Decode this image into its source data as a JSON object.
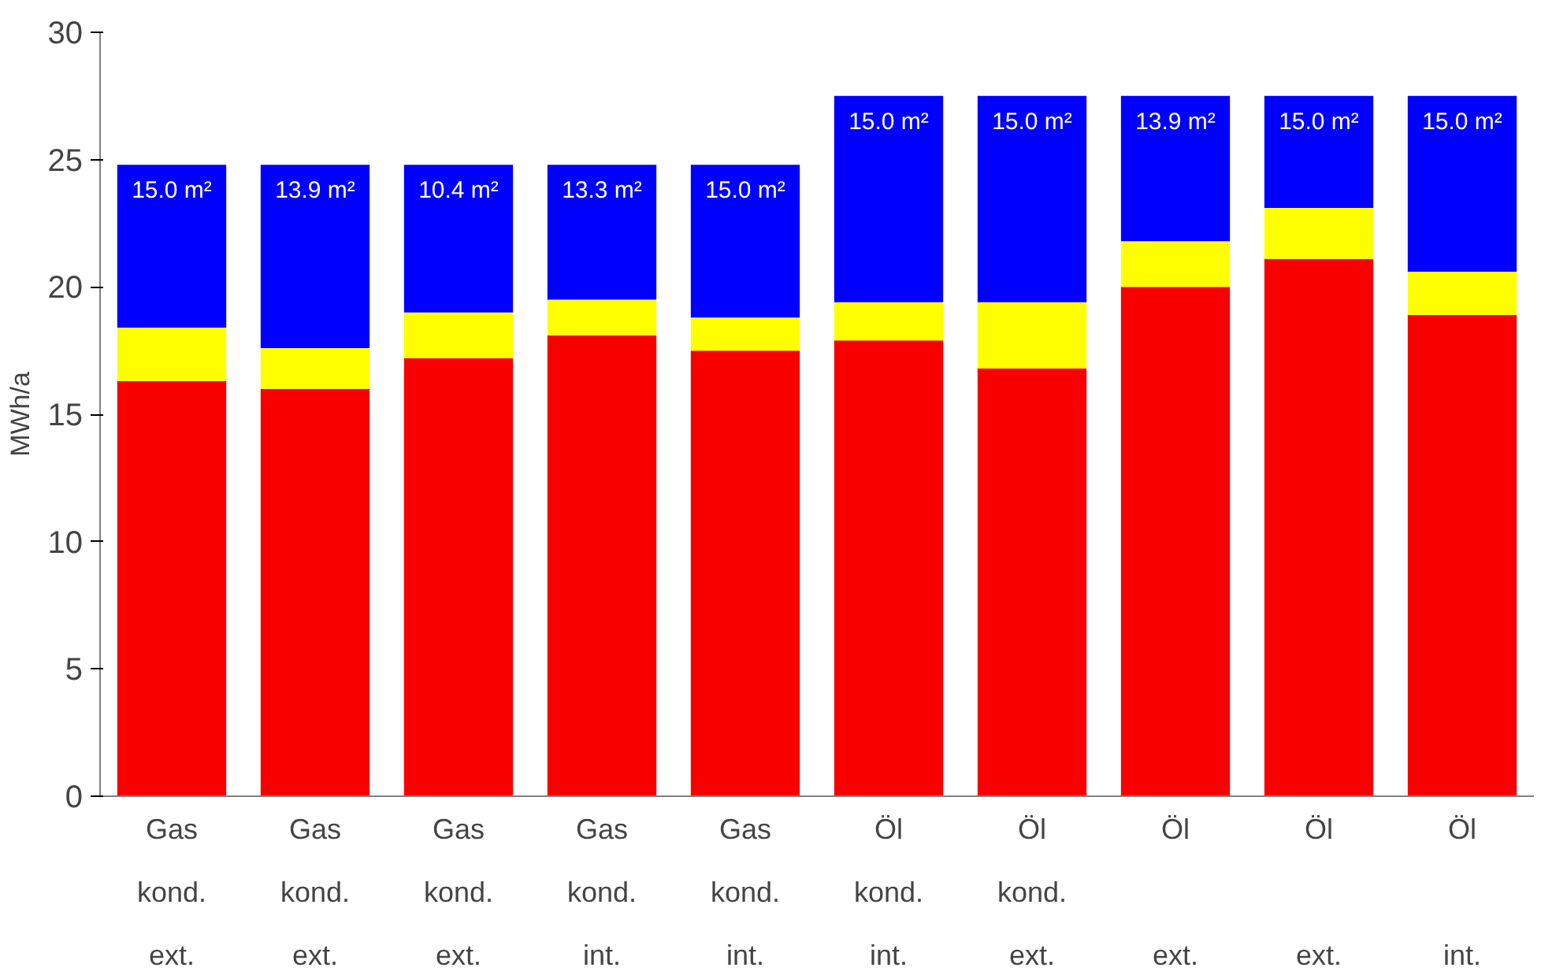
{
  "chart_data": {
    "type": "bar",
    "stacked": true,
    "ylabel": "MWh/a",
    "categories": [
      "Gas\nkond.\next.",
      "Gas\nkond.\next.",
      "Gas\nkond.\next.",
      "Gas\nkond.\nint.",
      "Gas\nkond.\nint.",
      "Öl\nkond.\nint.",
      "Öl\nkond.\next.",
      "Öl\n\next.",
      "Öl\n\next.",
      "Öl\n\nint."
    ],
    "series": [
      {
        "color": "#f80000",
        "values": [
          16.3,
          16.0,
          17.2,
          18.1,
          17.5,
          17.9,
          16.8,
          20.0,
          21.1,
          18.9
        ]
      },
      {
        "color": "#ffff00",
        "values": [
          2.1,
          1.6,
          1.8,
          1.4,
          1.3,
          1.5,
          2.6,
          1.8,
          2.0,
          1.7
        ]
      },
      {
        "color": "#0000ff",
        "values": [
          6.4,
          7.2,
          5.8,
          5.3,
          6.0,
          8.1,
          8.1,
          5.7,
          4.4,
          6.9
        ]
      }
    ],
    "annotations": [
      "15.0 m²",
      "13.9 m²",
      "10.4 m²",
      "13.3 m²",
      "15.0 m²",
      "15.0 m²",
      "15.0 m²",
      "13.9 m²",
      "15.0 m²",
      "15.0 m²"
    ],
    "ylim": [
      0,
      30
    ],
    "yticks": [
      0,
      5,
      10,
      15,
      20,
      25,
      30
    ],
    "grid": false
  }
}
